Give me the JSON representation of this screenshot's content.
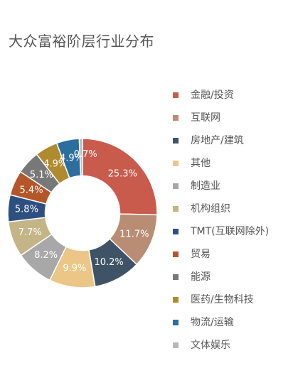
{
  "chart_data": {
    "type": "pie",
    "title": "大众富裕阶层行业分布",
    "categories": [
      "金融/投资",
      "互联网",
      "房地产/建筑",
      "其他",
      "制造业",
      "机构组织",
      "TMT(互联网除外)",
      "贸易",
      "能源",
      "医药/生物科技",
      "物流/运输",
      "文体娱乐"
    ],
    "values": [
      25.3,
      11.7,
      10.2,
      9.9,
      8.2,
      7.7,
      5.8,
      5.4,
      5.1,
      4.9,
      4.9,
      0.7
    ],
    "labels": [
      "25.3%",
      "11.7%",
      "10.2%",
      "9.9%",
      "8.2%",
      "7.7%",
      "5.8%",
      "5.4%",
      "5.1%",
      "4.9%",
      "4.9%",
      "0.7%"
    ],
    "colors": [
      "#c95b4d",
      "#b98c74",
      "#3f5366",
      "#ecc687",
      "#a8a8a8",
      "#c4b587",
      "#2e5080",
      "#b3572b",
      "#787878",
      "#b08a2e",
      "#2c6e9e",
      "#b9b9b9"
    ],
    "legend_position": "right",
    "inner_radius_ratio": 0.5
  }
}
